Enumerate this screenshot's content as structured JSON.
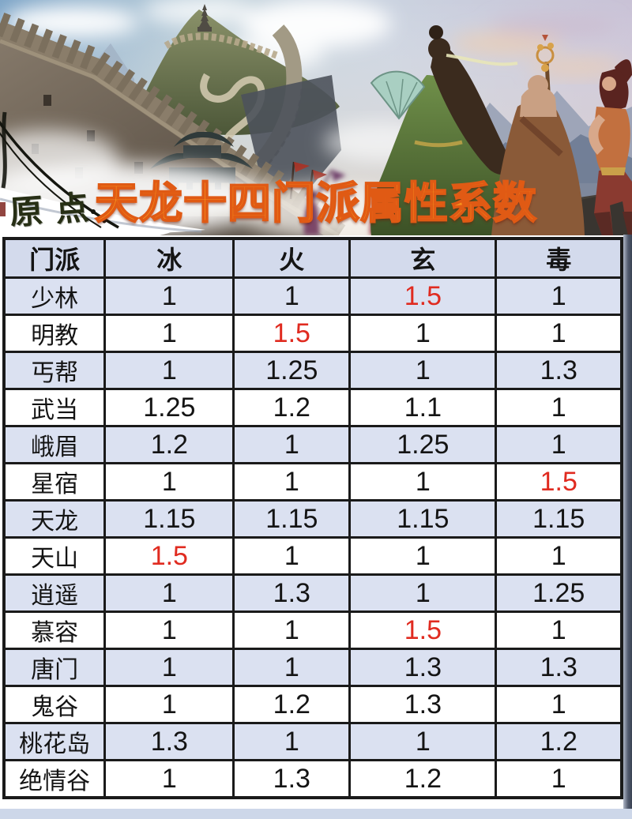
{
  "title": "天龙十四门派属性系数",
  "watermark": "原点",
  "colors": {
    "title_orange": "#f8941d",
    "title_stroke": "#e05a14",
    "highlight_red": "#e02b20",
    "row_alt": "#dbe1f1",
    "header_bg": "#d3daec",
    "border_dark": "#1a1a1a",
    "footer_strip": "#cdd7e9"
  },
  "chart_data": {
    "type": "table",
    "title": "天龙十四门派属性系数",
    "columns": [
      "门派",
      "冰",
      "火",
      "玄",
      "毒"
    ],
    "highlight_value": "1.5",
    "highlight_color": "#e02b20",
    "rows": [
      {
        "sect": "少林",
        "values": [
          "1",
          "1",
          "1.5",
          "1"
        ]
      },
      {
        "sect": "明教",
        "values": [
          "1",
          "1.5",
          "1",
          "1"
        ]
      },
      {
        "sect": "丐帮",
        "values": [
          "1",
          "1.25",
          "1",
          "1.3"
        ]
      },
      {
        "sect": "武当",
        "values": [
          "1.25",
          "1.2",
          "1.1",
          "1"
        ]
      },
      {
        "sect": "峨眉",
        "values": [
          "1.2",
          "1",
          "1.25",
          "1"
        ]
      },
      {
        "sect": "星宿",
        "values": [
          "1",
          "1",
          "1",
          "1.5"
        ]
      },
      {
        "sect": "天龙",
        "values": [
          "1.15",
          "1.15",
          "1.15",
          "1.15"
        ]
      },
      {
        "sect": "天山",
        "values": [
          "1.5",
          "1",
          "1",
          "1"
        ]
      },
      {
        "sect": "逍遥",
        "values": [
          "1",
          "1.3",
          "1",
          "1.25"
        ]
      },
      {
        "sect": "慕容",
        "values": [
          "1",
          "1",
          "1.5",
          "1"
        ]
      },
      {
        "sect": "唐门",
        "values": [
          "1",
          "1",
          "1.3",
          "1.3"
        ]
      },
      {
        "sect": "鬼谷",
        "values": [
          "1",
          "1.2",
          "1.3",
          "1"
        ]
      },
      {
        "sect": "桃花岛",
        "values": [
          "1.3",
          "1",
          "1",
          "1.2"
        ]
      },
      {
        "sect": "绝情谷",
        "values": [
          "1",
          "1.3",
          "1.2",
          "1"
        ]
      }
    ]
  }
}
